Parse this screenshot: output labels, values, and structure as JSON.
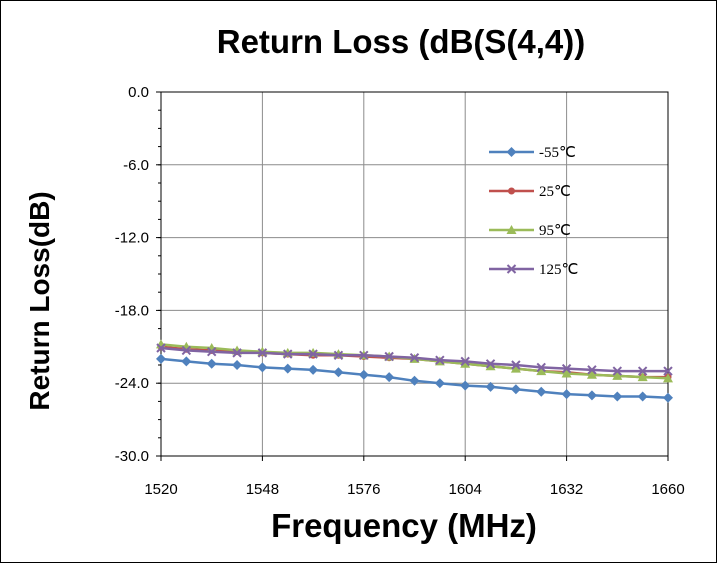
{
  "chart_data": {
    "type": "line",
    "title": "Return Loss (dB(S(4,4))",
    "xlabel": "Frequency (MHz)",
    "ylabel": "Return Loss(dB)",
    "xlim": [
      1520,
      1660
    ],
    "ylim": [
      -30,
      0
    ],
    "xticks": [
      1520,
      1548,
      1576,
      1604,
      1632,
      1660
    ],
    "xtick_labels": [
      "1520",
      "1548",
      "1576",
      "1604",
      "1632",
      "1660"
    ],
    "yticks": [
      0,
      -6,
      -12,
      -18,
      -24,
      -30
    ],
    "ytick_labels": [
      "0.0",
      "-6.0",
      "-12.0",
      "-18.0",
      "-24.0",
      "-30.0"
    ],
    "grid": true,
    "legend_position": "right",
    "x": [
      1520,
      1527,
      1534,
      1541,
      1548,
      1555,
      1562,
      1569,
      1576,
      1583,
      1590,
      1597,
      1604,
      1611,
      1618,
      1625,
      1632,
      1639,
      1646,
      1653,
      1660
    ],
    "series": [
      {
        "name": "-55℃",
        "color": "#4F81BD",
        "marker": "diamond",
        "values": [
          -22.0,
          -22.2,
          -22.4,
          -22.5,
          -22.7,
          -22.8,
          -22.9,
          -23.1,
          -23.3,
          -23.5,
          -23.8,
          -24.0,
          -24.2,
          -24.3,
          -24.5,
          -24.7,
          -24.9,
          -25.0,
          -25.1,
          -25.1,
          -25.2
        ]
      },
      {
        "name": "25℃",
        "color": "#C0504D",
        "marker": "circle",
        "values": [
          -21.0,
          -21.2,
          -21.3,
          -21.4,
          -21.5,
          -21.6,
          -21.7,
          -21.7,
          -21.8,
          -21.9,
          -22.0,
          -22.2,
          -22.4,
          -22.6,
          -22.8,
          -23.0,
          -23.1,
          -23.3,
          -23.4,
          -23.5,
          -23.5
        ]
      },
      {
        "name": "95℃",
        "color": "#9BBB59",
        "marker": "triangle",
        "values": [
          -20.8,
          -21.0,
          -21.1,
          -21.3,
          -21.4,
          -21.5,
          -21.5,
          -21.6,
          -21.7,
          -21.8,
          -22.0,
          -22.2,
          -22.4,
          -22.6,
          -22.8,
          -23.0,
          -23.2,
          -23.3,
          -23.4,
          -23.5,
          -23.6
        ]
      },
      {
        "name": "125℃",
        "color": "#8064A2",
        "marker": "x",
        "values": [
          -21.1,
          -21.3,
          -21.4,
          -21.5,
          -21.5,
          -21.6,
          -21.6,
          -21.7,
          -21.7,
          -21.8,
          -21.9,
          -22.1,
          -22.2,
          -22.4,
          -22.5,
          -22.7,
          -22.8,
          -22.9,
          -23.0,
          -23.0,
          -23.0
        ]
      }
    ]
  }
}
